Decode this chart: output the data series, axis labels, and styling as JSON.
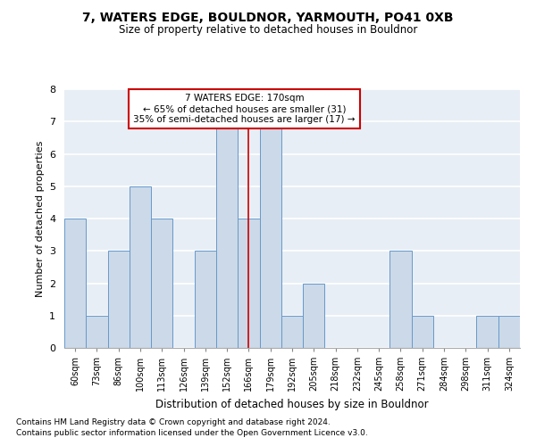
{
  "title": "7, WATERS EDGE, BOULDNOR, YARMOUTH, PO41 0XB",
  "subtitle": "Size of property relative to detached houses in Bouldnor",
  "xlabel": "Distribution of detached houses by size in Bouldnor",
  "ylabel": "Number of detached properties",
  "categories": [
    "60sqm",
    "73sqm",
    "86sqm",
    "100sqm",
    "113sqm",
    "126sqm",
    "139sqm",
    "152sqm",
    "166sqm",
    "179sqm",
    "192sqm",
    "205sqm",
    "218sqm",
    "232sqm",
    "245sqm",
    "258sqm",
    "271sqm",
    "284sqm",
    "298sqm",
    "311sqm",
    "324sqm"
  ],
  "values": [
    4,
    1,
    3,
    5,
    4,
    0,
    3,
    7,
    4,
    7,
    1,
    2,
    0,
    0,
    0,
    3,
    1,
    0,
    0,
    1,
    1
  ],
  "bar_color": "#ccd9e8",
  "bar_edge_color": "#6699cc",
  "highlight_line_index": 8,
  "highlight_line_color": "#cc0000",
  "annotation_line1": "7 WATERS EDGE: 170sqm",
  "annotation_line2": "← 65% of detached houses are smaller (31)",
  "annotation_line3": "35% of semi-detached houses are larger (17) →",
  "annotation_box_color": "#cc0000",
  "ylim_max": 8,
  "yticks": [
    0,
    1,
    2,
    3,
    4,
    5,
    6,
    7,
    8
  ],
  "bg_color": "#e8eef5",
  "grid_color": "#ffffff",
  "title_fontsize": 10,
  "subtitle_fontsize": 8.5,
  "footnote1": "Contains HM Land Registry data © Crown copyright and database right 2024.",
  "footnote2": "Contains public sector information licensed under the Open Government Licence v3.0."
}
